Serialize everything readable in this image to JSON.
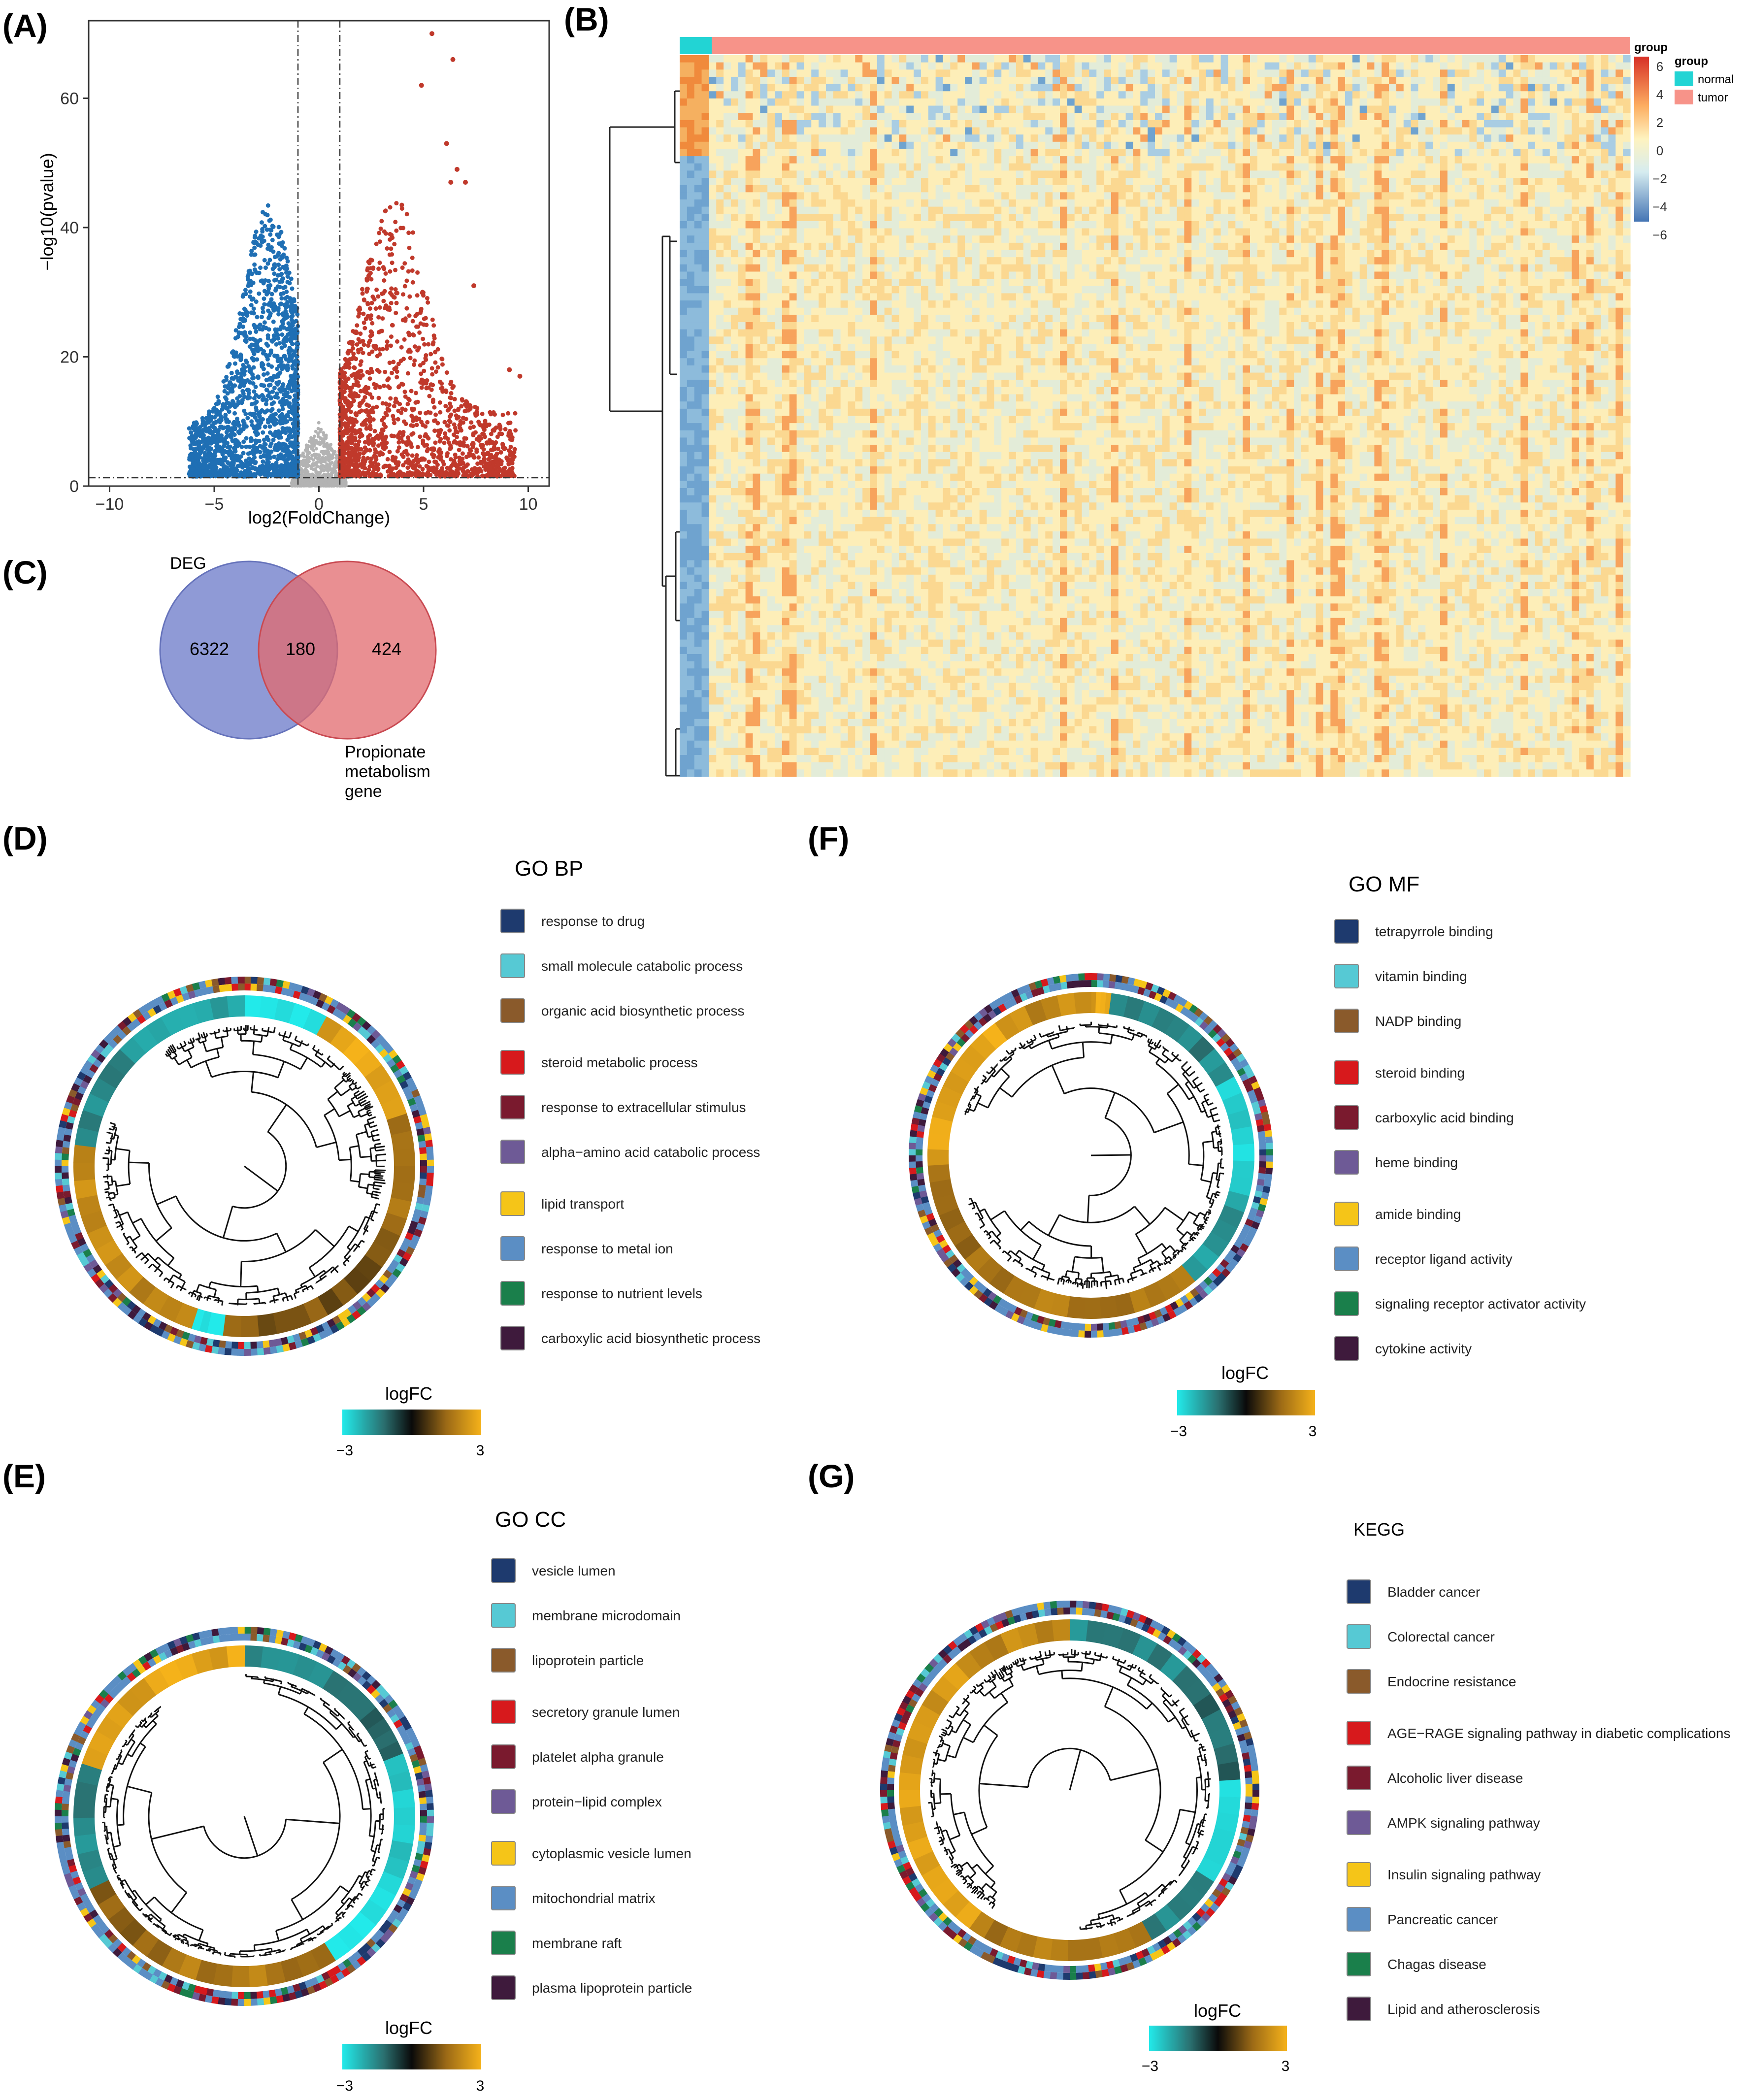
{
  "panels": {
    "A": "(A)",
    "B": "(B)",
    "C": "(C)",
    "D": "(D)",
    "E": "(E)",
    "F": "(F)",
    "G": "(G)"
  },
  "volcano": {
    "chart_data": {
      "type": "scatter",
      "xlabel": "log2(FoldChange)",
      "ylabel": "−log10(pvalue)",
      "xlim": [
        -11,
        11
      ],
      "ylim": [
        0,
        72
      ],
      "xticks": [
        "−10",
        "−5",
        "0",
        "5",
        "10"
      ],
      "xtick_values": [
        -10,
        -5,
        0,
        5,
        10
      ],
      "yticks": [
        "0",
        "20",
        "40",
        "60"
      ],
      "ytick_values": [
        0,
        20,
        40,
        60
      ],
      "vlines": [
        -1,
        1
      ],
      "hline": 1.3,
      "series": [
        {
          "name": "down",
          "color": "#1f6fb4",
          "x_range": [
            -6.2,
            -1
          ],
          "y_max": 44
        },
        {
          "name": "up",
          "color": "#c0392b",
          "x_range": [
            1,
            9.7
          ],
          "y_max": 70
        },
        {
          "name": "not significant",
          "color": "#b3b3b3",
          "x_range": [
            -1.3,
            1.3
          ],
          "y_max": 10
        }
      ],
      "highlight_points": [
        [
          5.4,
          70
        ],
        [
          6.4,
          66
        ],
        [
          4.9,
          62
        ],
        [
          6.1,
          53
        ],
        [
          6.6,
          49
        ],
        [
          7.0,
          47
        ],
        [
          6.3,
          47
        ],
        [
          7.4,
          31
        ],
        [
          9.1,
          18
        ],
        [
          9.6,
          17
        ]
      ]
    }
  },
  "heatmap": {
    "legend_title": "group",
    "groups": [
      "normal",
      "tumor"
    ],
    "group_colors": [
      "#22d4d4",
      "#f79389"
    ],
    "scale_ticks": [
      "6",
      "4",
      "2",
      "0",
      "−2",
      "−4",
      "−6"
    ],
    "scale_colors": [
      "#d73027",
      "#fdae61",
      "#fee8a8",
      "#e0f0f0",
      "#4575b4"
    ]
  },
  "venn": {
    "chart_data": {
      "type": "venn",
      "sets": [
        {
          "name": "DEG",
          "only": 6322,
          "color": "#7b88cf"
        },
        {
          "name": "Propionate metabolism gene",
          "only": 424,
          "color": "#e16a6e"
        }
      ],
      "intersection": 180
    },
    "label_deg": "DEG",
    "label_prop": [
      "Propionate",
      "metabolism",
      "gene"
    ],
    "n_left": "6322",
    "n_mid": "180",
    "n_right": "424"
  },
  "legend_colors": [
    "#1e3a6e",
    "#56c9d4",
    "#8a5a2b",
    "#d7191c",
    "#7a1a2e",
    "#6e5a96",
    "#f5c518",
    "#5b8ec4",
    "#1a7f4b",
    "#3e1a3c"
  ],
  "logfc": {
    "title": "logFC",
    "min": "−3",
    "max": "3",
    "colors": [
      "#22eaea",
      "#2a6f6f",
      "#0a0a0a",
      "#9c6a16",
      "#f5b21a"
    ]
  },
  "go_bp": {
    "title": "GO BP",
    "terms": [
      "response to drug",
      "small molecule catabolic process",
      "organic acid biosynthetic process",
      "steroid metabolic process",
      "response to extracellular stimulus",
      "alpha−amino acid catabolic process",
      "lipid transport",
      "response to metal ion",
      "response to nutrient levels",
      "carboxylic acid biosynthetic process"
    ]
  },
  "go_cc": {
    "title": "GO CC",
    "terms": [
      "vesicle lumen",
      "membrane microdomain",
      "lipoprotein particle",
      "secretory granule lumen",
      "platelet alpha granule",
      "protein−lipid complex",
      "cytoplasmic vesicle lumen",
      "mitochondrial matrix",
      "membrane raft",
      "plasma lipoprotein particle"
    ]
  },
  "go_mf": {
    "title": "GO MF",
    "terms": [
      "tetrapyrrole binding",
      "vitamin binding",
      "NADP binding",
      "steroid binding",
      "carboxylic acid binding",
      "heme binding",
      "amide binding",
      "receptor ligand activity",
      "signaling receptor activator activity",
      "cytokine activity"
    ]
  },
  "kegg": {
    "title": "KEGG",
    "terms": [
      "Bladder cancer",
      "Colorectal cancer",
      "Endocrine resistance",
      "AGE−RAGE signaling pathway in diabetic complications",
      "Alcoholic liver disease",
      "AMPK signaling pathway",
      "Insulin signaling pathway",
      "Pancreatic cancer",
      "Chagas disease",
      "Lipid and atherosclerosis"
    ]
  }
}
